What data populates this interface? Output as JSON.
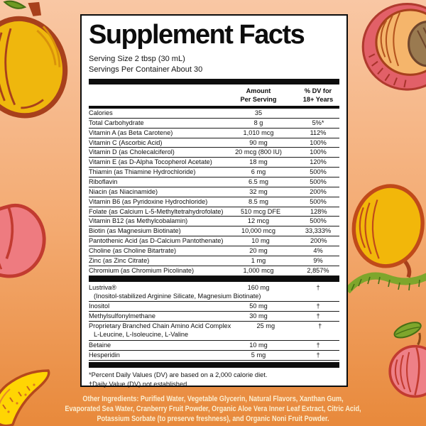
{
  "label": {
    "title": "Supplement Facts",
    "serving_size": "Serving Size 2 tbsp (30 mL)",
    "servings_per_container": "Servings Per Container About 30",
    "columns": {
      "amount_line1": "Amount",
      "amount_line2": "Per Serving",
      "dv_line1": "% DV for",
      "dv_line2": "18+ Years"
    },
    "main_rows": [
      {
        "name": "Calories",
        "amount": "35",
        "dv": ""
      },
      {
        "name": "Total Carbohydrate",
        "amount": "8 g",
        "dv": "5%*"
      },
      {
        "name": "Vitamin A (as Beta Carotene)",
        "amount": "1,010 mcg",
        "dv": "112%"
      },
      {
        "name": "Vitamin C (Ascorbic Acid)",
        "amount": "90 mg",
        "dv": "100%"
      },
      {
        "name": "Vitamin D (as Cholecalciferol)",
        "amount": "20 mcg (800 IU)",
        "dv": "100%"
      },
      {
        "name": "Vitamin E (as D-Alpha Tocopherol Acetate)",
        "amount": "18 mg",
        "dv": "120%"
      },
      {
        "name": "Thiamin (as Thiamine Hydrochloride)",
        "amount": "6 mg",
        "dv": "500%"
      },
      {
        "name": "Riboflavin",
        "amount": "6.5 mg",
        "dv": "500%"
      },
      {
        "name": "Niacin (as Niacinamide)",
        "amount": "32 mg",
        "dv": "200%"
      },
      {
        "name": "Vitamin B6 (as Pyridoxine Hydrochloride)",
        "amount": "8.5 mg",
        "dv": "500%"
      },
      {
        "name": "Folate (as Calcium L-5-Methyltetrahydrofolate)",
        "amount": "510 mcg DFE",
        "dv": "128%"
      },
      {
        "name": "Vitamin B12 (as Methylcobalamin)",
        "amount": "12 mcg",
        "dv": "500%"
      },
      {
        "name": "Biotin (as Magnesium Biotinate)",
        "amount": "10,000 mcg",
        "dv": "33,333%"
      },
      {
        "name": "Pantothenic Acid (as D-Calcium Pantothenate)",
        "amount": "10 mg",
        "dv": "200%"
      },
      {
        "name": "Choline (as Choline Bitartrate)",
        "amount": "20 mg",
        "dv": "4%"
      },
      {
        "name": "Zinc (as Zinc Citrate)",
        "amount": "1 mg",
        "dv": "9%"
      },
      {
        "name": "Chromium (as Chromium Picolinate)",
        "amount": "1,000 mcg",
        "dv": "2,857%"
      }
    ],
    "secondary_rows": [
      {
        "name": "Lustriva®",
        "amount": "160 mg",
        "dv": "†",
        "subline": "(Inositol-stabilized Arginine Silicate, Magnesium Biotinate)"
      },
      {
        "name": "Inositol",
        "amount": "50 mg",
        "dv": "†"
      },
      {
        "name": "Methylsulfonylmethane",
        "amount": "30 mg",
        "dv": "†"
      },
      {
        "name": "Proprietary Branched Chain Amino Acid Complex",
        "amount": "25 mg",
        "dv": "†",
        "subline": "L-Leucine, L-Isoleucine, L-Valine"
      },
      {
        "name": "Betaine",
        "amount": "10 mg",
        "dv": "†"
      },
      {
        "name": "Hesperidin",
        "amount": "5 mg",
        "dv": "†"
      }
    ],
    "footnotes": [
      "*Percent Daily Values (DV) are based on a 2,000 calorie diet.",
      "†Daily Value (DV) not established."
    ]
  },
  "other_ingredients": {
    "lines": [
      "Other Ingredients: Purified Water, Vegetable Glycerin, Natural Flavors, Xanthan Gum,",
      "Evaporated Sea Water, Cranberry Fruit Powder, Organic Aloe Vera Inner Leaf Extract, Citric Acid,",
      "Potassium Sorbate (to preserve freshness), and Organic Noni Fruit Powder."
    ]
  },
  "colors": {
    "background_top": "#F9C7A4",
    "background_bottom": "#E8893B",
    "panel_background": "#FFFFFF",
    "ink": "#0D0D0D",
    "ingredients_text": "#FBEED0",
    "mango_yellow": "#EFB70D",
    "mango_outline": "#A8401C",
    "peach_pink": "#EE7B80",
    "peach_outline": "#C23B30",
    "leaf_green": "#7EA62C",
    "pit_brown": "#9A7A50"
  },
  "illustrations": [
    "mango-top-left",
    "peach-half-top-right",
    "peach-mid-left",
    "mango-mid-right",
    "leaf-vine-right",
    "mango-slice-bottom-left",
    "peach-bottom-right"
  ]
}
